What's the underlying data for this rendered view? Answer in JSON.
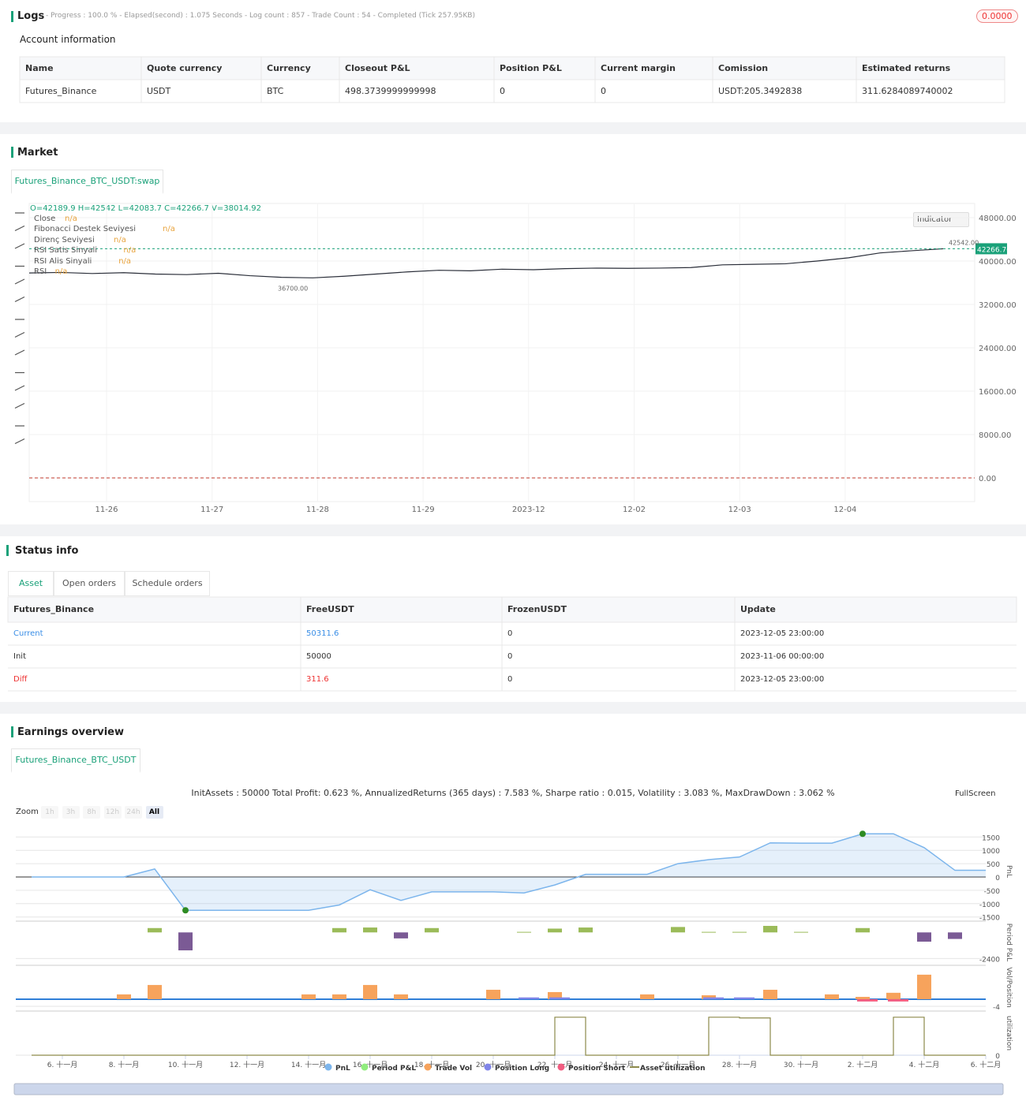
{
  "logs": {
    "title": "Logs",
    "summary": "- Progress : 100.0 % - Elapsed(second) : 1.075 Seconds - Log count : 857 - Trade Count : 54 - Completed (Tick 257.95KB)",
    "badge": "0.0000"
  },
  "account": {
    "title": "Account information",
    "columns": [
      "Name",
      "Quote currency",
      "Currency",
      "Closeout P&L",
      "Position P&L",
      "Current margin",
      "Comission",
      "Estimated returns"
    ],
    "rows": [
      [
        "Futures_Binance",
        "USDT",
        "BTC",
        "498.3739999999998",
        "0",
        "0",
        "USDT:205.3492838",
        "311.6284089740002"
      ]
    ]
  },
  "market": {
    "title": "Market",
    "tab": "Futures_Binance_BTC_USDT:swap",
    "ohlc": "O=42189.9 H=42542 L=42083.7 C=42266.7 V=38014.92",
    "indicator_button": "Indicator",
    "legend": [
      {
        "name": "Close",
        "value": "n/a"
      },
      {
        "name": "Fibonacci Destek Seviyesi",
        "value": "n/a"
      },
      {
        "name": "Direnç Seviyesi",
        "value": "n/a"
      },
      {
        "name": "RSI Satis Sinyali",
        "value": "n/a"
      },
      {
        "name": "RSI Alis Sinyali",
        "value": "n/a"
      },
      {
        "name": "RSI",
        "value": "n/a"
      }
    ],
    "chart_data": {
      "type": "line",
      "values": [
        37800,
        37900,
        37700,
        37850,
        37600,
        37500,
        37750,
        37300,
        37000,
        36900,
        37200,
        37600,
        38000,
        38300,
        38200,
        38500,
        38400,
        38600,
        38700,
        38650,
        38700,
        38800,
        39300,
        39400,
        39500,
        40000,
        40600,
        41500,
        41900,
        42266.7
      ],
      "color": "#2a2e39",
      "ylim": [
        -4364,
        50618
      ],
      "yticks": [
        {
          "value": 48000,
          "label": "48000.00"
        },
        {
          "value": 40000,
          "label": "40000.00"
        },
        {
          "value": 32000,
          "label": "32000.00"
        },
        {
          "value": 24000,
          "label": "24000.00"
        },
        {
          "value": 16000,
          "label": "16000.00"
        },
        {
          "value": 8000,
          "label": "8000.00"
        },
        {
          "value": 0,
          "label": "0.00"
        }
      ],
      "last": {
        "value": 42266.7,
        "label": "42266.70"
      },
      "high": {
        "value": 42542,
        "label": "42542.00"
      },
      "low": {
        "value": 36700,
        "label": "36700.00"
      },
      "xtick_labels": [
        "11-26",
        "11-27",
        "11-28",
        "11-29",
        "2023-12",
        "12-02",
        "12-03",
        "12-04"
      ]
    }
  },
  "status": {
    "title": "Status info",
    "tabs": [
      "Asset",
      "Open orders",
      "Schedule orders"
    ],
    "table": {
      "columns": [
        "Futures_Binance",
        "FreeUSDT",
        "FrozenUSDT",
        "Update"
      ],
      "rows": [
        [
          "Current",
          "50311.6",
          "0",
          "2023-12-05 23:00:00"
        ],
        [
          "Init",
          "50000",
          "0",
          "2023-11-06 00:00:00"
        ],
        [
          "Diff",
          "311.6",
          "0",
          "2023-12-05 23:00:00"
        ]
      ]
    }
  },
  "earnings": {
    "title": "Earnings overview",
    "tab": "Futures_Binance_BTC_USDT",
    "summary": "InitAssets : 50000 Total Profit: 0.623 %, AnnualizedReturns (365 days) : 7.583 %, Sharpe ratio : 0.015, Volatility : 3.083 %, MaxDrawDown : 3.062 %",
    "fullscreen": "FullScreen",
    "zoom_label": "Zoom",
    "zoom_options": [
      "1h",
      "3h",
      "8h",
      "12h",
      "24h",
      "All"
    ],
    "chart_data": {
      "type": "line",
      "categories": [
        null,
        "6. 十一月",
        null,
        "8. 十一月",
        null,
        "10. 十一月",
        null,
        "12. 十一月",
        null,
        "14. 十一月",
        null,
        "16. 十一月",
        null,
        "18. 十一月",
        null,
        "20. 十一月",
        null,
        "22. 十一月",
        null,
        "24. 十一月",
        null,
        "26. 十一月",
        null,
        "28. 十一月",
        null,
        "30. 十一月",
        null,
        "2. 十二月",
        null,
        "4. 十二月",
        null,
        "6. 十二月"
      ],
      "series": [
        {
          "name": "PnL",
          "color": "#7cb5ec",
          "values": [
            0,
            0,
            0,
            0,
            300,
            -1250,
            -1250,
            -1250,
            -1250,
            -1250,
            -1050,
            -480,
            -880,
            -560,
            -560,
            -560,
            -600,
            -300,
            100,
            100,
            100,
            500,
            650,
            750,
            1280,
            1270,
            1270,
            1620,
            1620,
            1100,
            250,
            250
          ]
        },
        {
          "name": "Period P&L",
          "color": "#90ed7d",
          "values": [
            0,
            0,
            0,
            0,
            400,
            -1650,
            0,
            0,
            0,
            0,
            400,
            450,
            -550,
            400,
            0,
            0,
            50,
            350,
            450,
            0,
            0,
            500,
            50,
            50,
            600,
            50,
            0,
            400,
            0,
            -850,
            -600,
            0
          ]
        },
        {
          "name": "Trade Vol",
          "color": "#f7a35c",
          "values": [
            0,
            0,
            0,
            2.7,
            8,
            0,
            0,
            0,
            0,
            2.7,
            2.7,
            8,
            2.7,
            0,
            0,
            5.3,
            0,
            4,
            0,
            0,
            2.7,
            0,
            2.2,
            0,
            5.3,
            0,
            2.7,
            1.3,
            3.6,
            13.8,
            0,
            0
          ]
        },
        {
          "name": "Position Long",
          "color": "#8085e9",
          "values": [
            0,
            0,
            0,
            0,
            0,
            0,
            0,
            0,
            0,
            0,
            0,
            0,
            0,
            0,
            0,
            0,
            1,
            1,
            0,
            0,
            0,
            0,
            1,
            1,
            0,
            0,
            0,
            0,
            0,
            0,
            0,
            0
          ]
        },
        {
          "name": "Position Short",
          "color": "#f15c80",
          "values": [
            0,
            0,
            0,
            0,
            0,
            0,
            0,
            0,
            0,
            0,
            0,
            0,
            0,
            0,
            0,
            0,
            0,
            0,
            0,
            0,
            0,
            0,
            0,
            0,
            0,
            0,
            0,
            -1.3,
            -1.3,
            0,
            0,
            0
          ]
        },
        {
          "name": "Asset utilization",
          "color": "#8d8a4b",
          "values": [
            0,
            0,
            0,
            0,
            0,
            0,
            0,
            0,
            0,
            0,
            0,
            0,
            0,
            0,
            0,
            0,
            0,
            1,
            0,
            0,
            0,
            0,
            1,
            0.98,
            0,
            0,
            0,
            0,
            1,
            0,
            0,
            0
          ]
        }
      ],
      "negative_color": "#7b5a95",
      "ylim": [
        -1657,
        1923
      ],
      "yticks": [
        1500,
        1000,
        500,
        0,
        -500,
        -1000,
        -1500
      ],
      "period_ylim": [
        -2880,
        891
      ],
      "period_yticks": [
        -2400
      ],
      "vol_ylim": [
        -5.8,
        17.3
      ],
      "vol_yticks": [
        -4
      ],
      "util_ylim": [
        0,
        1.1
      ],
      "util_yticks": [
        0
      ],
      "axis_labels": [
        "PnL",
        "Period P&L",
        "Vol/Position",
        "utilization"
      ]
    }
  }
}
